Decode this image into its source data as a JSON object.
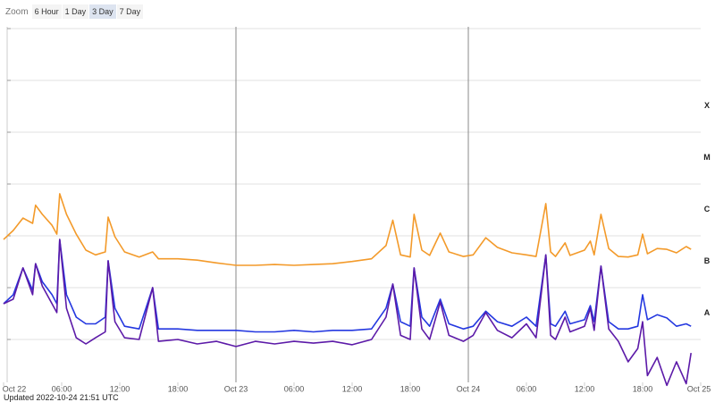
{
  "zoom": {
    "label": "Zoom",
    "buttons": [
      "6 Hour",
      "1 Day",
      "3 Day",
      "7 Day"
    ],
    "selected": "3 Day"
  },
  "updated": "Updated 2022-10-24 21:51 UTC",
  "chart_data": {
    "type": "line",
    "log_scale": true,
    "x": [
      "2022-10-22T00:00",
      "2022-10-22T01:00",
      "2022-10-22T02:00",
      "2022-10-22T03:00",
      "2022-10-22T03:18",
      "2022-10-22T04:00",
      "2022-10-22T05:00",
      "2022-10-22T05:30",
      "2022-10-22T05:48",
      "2022-10-22T06:30",
      "2022-10-22T07:30",
      "2022-10-22T08:30",
      "2022-10-22T09:30",
      "2022-10-22T10:30",
      "2022-10-22T10:48",
      "2022-10-22T11:30",
      "2022-10-22T12:30",
      "2022-10-22T14:00",
      "2022-10-22T15:24",
      "2022-10-22T16:00",
      "2022-10-22T18:00",
      "2022-10-22T20:00",
      "2022-10-22T22:00",
      "2022-10-23T00:00",
      "2022-10-23T02:00",
      "2022-10-23T04:00",
      "2022-10-23T06:00",
      "2022-10-23T08:00",
      "2022-10-23T10:00",
      "2022-10-23T12:00",
      "2022-10-23T14:00",
      "2022-10-23T15:30",
      "2022-10-23T16:12",
      "2022-10-23T17:00",
      "2022-10-23T18:00",
      "2022-10-23T18:24",
      "2022-10-23T19:12",
      "2022-10-23T20:00",
      "2022-10-23T21:06",
      "2022-10-23T22:00",
      "2022-10-23T23:30",
      "2022-10-24T00:30",
      "2022-10-24T01:48",
      "2022-10-24T03:00",
      "2022-10-24T04:30",
      "2022-10-24T06:00",
      "2022-10-24T07:00",
      "2022-10-24T08:00",
      "2022-10-24T08:30",
      "2022-10-24T09:00",
      "2022-10-24T10:00",
      "2022-10-24T10:30",
      "2022-10-24T12:00",
      "2022-10-24T12:36",
      "2022-10-24T13:00",
      "2022-10-24T13:42",
      "2022-10-24T14:30",
      "2022-10-24T15:30",
      "2022-10-24T16:30",
      "2022-10-24T17:30",
      "2022-10-24T18:00",
      "2022-10-24T18:30",
      "2022-10-24T19:30",
      "2022-10-24T20:30",
      "2022-10-24T21:30",
      "2022-10-24T22:30",
      "2022-10-24T23:00"
    ],
    "series": [
      {
        "color": "#f39a2a",
        "values": [
          8.5e-07,
          1.27e-06,
          2.2e-06,
          1.74e-06,
          3.9e-06,
          2.6e-06,
          1.6e-06,
          1.08e-06,
          6.5e-06,
          2.6e-06,
          1.08e-06,
          5.3e-07,
          4.3e-07,
          4.9e-07,
          2.3e-06,
          9.6e-07,
          4.9e-07,
          3.9e-07,
          4.9e-07,
          3.6e-07,
          3.6e-07,
          3.4e-07,
          3e-07,
          2.7e-07,
          2.7e-07,
          2.8e-07,
          2.7e-07,
          2.8e-07,
          2.9e-07,
          3.2e-07,
          3.6e-07,
          6.5e-07,
          2e-06,
          4.3e-07,
          3.9e-07,
          2.6e-06,
          5.3e-07,
          4.2e-07,
          1.13e-06,
          4.9e-07,
          4e-07,
          4.3e-07,
          9.2e-07,
          6e-07,
          4.7e-07,
          4.3e-07,
          4e-07,
          4.2e-06,
          4.9e-07,
          4e-07,
          7.3e-07,
          4.2e-07,
          5.3e-07,
          7.9e-07,
          4.3e-07,
          2.6e-06,
          5.7e-07,
          4e-07,
          3.9e-07,
          4.3e-07,
          1.08e-06,
          4.5e-07,
          5.7e-07,
          5.5e-07,
          4.7e-07,
          6.2e-07,
          5.5e-07
        ]
      },
      {
        "color": "#2438e0",
        "values": [
          4.9e-08,
          7.3e-08,
          2.4e-07,
          8.9e-08,
          2.9e-07,
          1.3e-07,
          7.3e-08,
          4.9e-08,
          8.5e-07,
          7.3e-08,
          2.7e-08,
          2e-08,
          2e-08,
          2.7e-08,
          3.3e-07,
          4e-08,
          1.8e-08,
          1.6e-08,
          1e-07,
          1.6e-08,
          1.6e-08,
          1.5e-08,
          1.5e-08,
          1.5e-08,
          1.4e-08,
          1.4e-08,
          1.5e-08,
          1.4e-08,
          1.5e-08,
          1.5e-08,
          1.6e-08,
          4e-08,
          1.17e-07,
          2.2e-08,
          1.8e-08,
          2.4e-07,
          2.7e-08,
          1.8e-08,
          6e-08,
          2e-08,
          1.6e-08,
          1.8e-08,
          3.5e-08,
          2.2e-08,
          1.8e-08,
          2.7e-08,
          1.8e-08,
          4.3e-07,
          2e-08,
          1.8e-08,
          3.5e-08,
          2e-08,
          2.4e-08,
          4.5e-08,
          2.2e-08,
          2.6e-07,
          2.2e-08,
          1.6e-08,
          1.6e-08,
          1.8e-08,
          7.3e-08,
          2.4e-08,
          3e-08,
          2.6e-08,
          1.8e-08,
          2e-08,
          1.8e-08
        ]
      },
      {
        "color": "#5c1aa8",
        "values": [
          4.9e-08,
          6e-08,
          2.4e-07,
          7.3e-08,
          2.9e-07,
          1.08e-07,
          4.9e-08,
          3.3e-08,
          8.5e-07,
          4e-08,
          1.08e-08,
          8.2e-09,
          1.08e-08,
          1.4e-08,
          3.3e-07,
          2.2e-08,
          1.08e-08,
          1e-08,
          1e-07,
          9.2e-09,
          1e-08,
          8.2e-09,
          9.2e-09,
          7.3e-09,
          9.2e-09,
          8.2e-09,
          9.2e-09,
          8.5e-09,
          9.2e-09,
          7.9e-09,
          1e-08,
          2.7e-08,
          1.17e-07,
          1.2e-08,
          1e-08,
          2.4e-07,
          1.6e-08,
          1e-08,
          5.3e-08,
          1.2e-08,
          9.2e-09,
          1.2e-08,
          3.3e-08,
          1.5e-08,
          1.08e-08,
          2e-08,
          1.08e-08,
          4.3e-07,
          1.2e-08,
          1e-08,
          2.7e-08,
          1.4e-08,
          1.8e-08,
          4e-08,
          1.5e-08,
          2.6e-07,
          1.6e-08,
          9.2e-09,
          3.7e-09,
          6.7e-09,
          2.2e-08,
          2e-09,
          4.5e-09,
          1.3e-09,
          3.7e-09,
          1.4e-09,
          5.5e-09
        ]
      }
    ],
    "xlim": [
      "2022-10-22T00:00",
      "2022-10-25T00:00"
    ],
    "xticks": [
      {
        "value": "2022-10-22T00:00",
        "label": "Oct 22"
      },
      {
        "value": "2022-10-22T06:00",
        "label": "06:00"
      },
      {
        "value": "2022-10-22T12:00",
        "label": "12:00"
      },
      {
        "value": "2022-10-22T18:00",
        "label": "18:00"
      },
      {
        "value": "2022-10-23T00:00",
        "label": "Oct 23"
      },
      {
        "value": "2022-10-23T06:00",
        "label": "06:00"
      },
      {
        "value": "2022-10-23T12:00",
        "label": "12:00"
      },
      {
        "value": "2022-10-23T18:00",
        "label": "18:00"
      },
      {
        "value": "2022-10-24T00:00",
        "label": "Oct 24"
      },
      {
        "value": "2022-10-24T06:00",
        "label": "06:00"
      },
      {
        "value": "2022-10-24T12:00",
        "label": "12:00"
      },
      {
        "value": "2022-10-24T18:00",
        "label": "18:00"
      },
      {
        "value": "2022-10-25T00:00",
        "label": "Oct 25"
      }
    ],
    "ylim": [
      1e-09,
      0.01
    ],
    "yticks": [
      {
        "value": 0.00032,
        "label": "X"
      },
      {
        "value": 3.2e-05,
        "label": "M"
      },
      {
        "value": 3.2e-06,
        "label": "C"
      },
      {
        "value": 3.2e-07,
        "label": "B"
      },
      {
        "value": 3.2e-08,
        "label": "A"
      }
    ],
    "ygrid": [
      1e-08,
      1e-07,
      1e-06,
      1e-05,
      0.0001,
      0.001,
      0.01
    ]
  }
}
